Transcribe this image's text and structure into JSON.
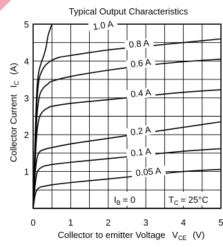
{
  "chart_data": {
    "type": "line",
    "title": "Typical Output Characteristics",
    "xlabel": "Collector to emitter Voltage",
    "xlabel_symbol": "V",
    "xlabel_subscript": "CE",
    "xlabel_unit": "(V)",
    "ylabel": "Collector Current",
    "ylabel_symbol": "I",
    "ylabel_subscript": "C",
    "ylabel_unit": "(A)",
    "xlim": [
      0,
      5
    ],
    "ylim": [
      0,
      5
    ],
    "xticks": [
      "0",
      "1",
      "2",
      "3",
      "4",
      "5"
    ],
    "yticks": [
      "1",
      "2",
      "3",
      "4",
      "5"
    ],
    "grid": "on",
    "annotation_ib": "I",
    "annotation_ib_sub": "B",
    "annotation_ib_value": "= 0",
    "annotation_tc": "T",
    "annotation_tc_sub": "C",
    "annotation_tc_value": "= 25°C",
    "series": [
      {
        "name": "1.0 A",
        "x": [
          0,
          0.05,
          0.1,
          0.15,
          0.2,
          0.25,
          0.3,
          0.35,
          0.4,
          0.5
        ],
        "y": [
          0,
          1.8,
          3.2,
          3.7,
          3.9,
          4.05,
          4.2,
          4.4,
          4.7,
          5.0
        ]
      },
      {
        "name": "0.8 A",
        "x": [
          0,
          0.05,
          0.1,
          0.15,
          0.2,
          0.3,
          0.4,
          0.5,
          0.7,
          1.0,
          2.0,
          3.0,
          4.0,
          5.0
        ],
        "y": [
          0,
          1.6,
          2.9,
          3.45,
          3.65,
          3.85,
          3.95,
          4.02,
          4.1,
          4.15,
          4.3,
          4.4,
          4.5,
          4.6
        ]
      },
      {
        "name": "0.6 A",
        "x": [
          0,
          0.05,
          0.1,
          0.15,
          0.2,
          0.3,
          0.4,
          0.5,
          1.0,
          2.0,
          3.0,
          4.0,
          5.0
        ],
        "y": [
          0,
          1.4,
          2.5,
          2.95,
          3.15,
          3.3,
          3.38,
          3.45,
          3.58,
          3.75,
          3.88,
          3.98,
          4.05
        ]
      },
      {
        "name": "0.4 A",
        "x": [
          0,
          0.05,
          0.1,
          0.15,
          0.2,
          0.3,
          0.4,
          0.5,
          1.0,
          2.0,
          3.0,
          4.0,
          5.0
        ],
        "y": [
          0,
          1.2,
          2.05,
          2.4,
          2.55,
          2.67,
          2.73,
          2.77,
          2.85,
          2.95,
          3.05,
          3.15,
          3.22
        ]
      },
      {
        "name": "0.2 A",
        "x": [
          0,
          0.05,
          0.1,
          0.15,
          0.2,
          0.3,
          0.4,
          0.5,
          1.0,
          2.0,
          3.0,
          4.0,
          5.0
        ],
        "y": [
          0,
          0.9,
          1.35,
          1.5,
          1.56,
          1.6,
          1.63,
          1.65,
          1.75,
          1.9,
          2.05,
          2.2,
          2.35
        ]
      },
      {
        "name": "0.1 A",
        "x": [
          0,
          0.05,
          0.1,
          0.15,
          0.2,
          0.3,
          0.4,
          0.5,
          1.0,
          2.0,
          3.0,
          4.0,
          5.0
        ],
        "y": [
          0,
          0.6,
          0.95,
          1.05,
          1.1,
          1.15,
          1.17,
          1.19,
          1.25,
          1.35,
          1.45,
          1.55,
          1.62
        ]
      },
      {
        "name": "0.05 A",
        "x": [
          0,
          0.05,
          0.1,
          0.15,
          0.2,
          0.3,
          0.4,
          0.5,
          1.0,
          2.0,
          3.0,
          4.0,
          5.0
        ],
        "y": [
          0,
          0.35,
          0.5,
          0.55,
          0.58,
          0.6,
          0.62,
          0.64,
          0.7,
          0.8,
          0.9,
          1.0,
          1.06
        ]
      },
      {
        "name": "",
        "x": [
          0,
          5
        ],
        "y": [
          0,
          0
        ]
      }
    ]
  }
}
